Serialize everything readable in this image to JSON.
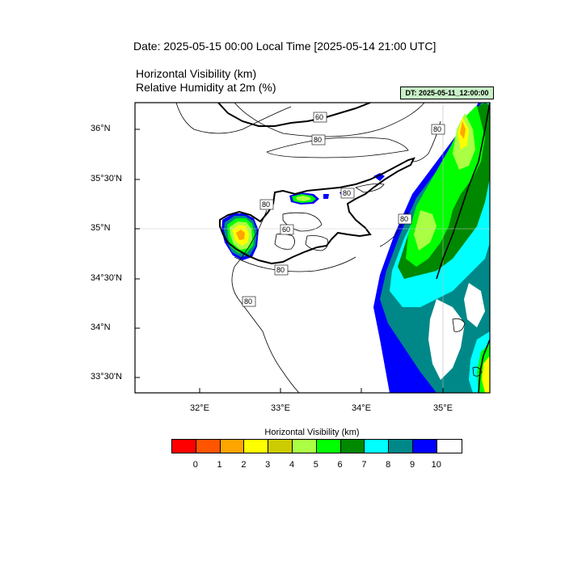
{
  "header": {
    "date_line": "Date: 2025-05-15  00:00 Local Time [2025-05-14  21:00 UTC]",
    "field1": "Horizontal Visibility   (km)",
    "field2": "Relative Humidity at 2m   (%)",
    "run_stamp": "DT: 2025-05-11_12:00:00"
  },
  "axes": {
    "y_labels": [
      "36°N",
      "35°30'N",
      "35°N",
      "34°30'N",
      "34°N",
      "33°30'N"
    ],
    "x_labels": [
      "32°E",
      "33°E",
      "34°E",
      "35°E"
    ]
  },
  "contour_labels": [
    "60",
    "80",
    "80",
    "80",
    "80",
    "80",
    "60",
    "80",
    "80"
  ],
  "colorbar": {
    "title": "Horizontal Visibility  (km)",
    "colors": [
      "#ff0000",
      "#ff5500",
      "#ffa500",
      "#ffff00",
      "#cccc00",
      "#aaff44",
      "#00ff00",
      "#008800",
      "#00ffff",
      "#008888",
      "#0000ff",
      "#ffffff"
    ],
    "ticks": [
      "0",
      "1",
      "2",
      "3",
      "4",
      "5",
      "6",
      "7",
      "8",
      "9",
      "10"
    ]
  }
}
